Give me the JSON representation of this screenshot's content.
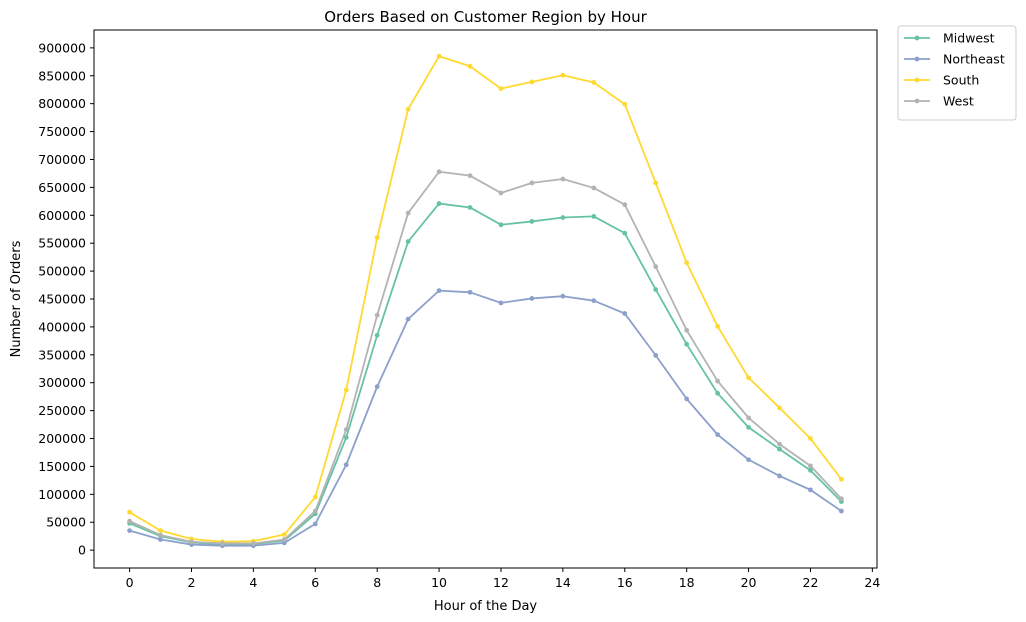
{
  "chart_data": {
    "type": "line",
    "title": "Orders Based on Customer Region by Hour",
    "xlabel": "Hour of the Day",
    "ylabel": "Number of Orders",
    "xlim": [
      -1.15,
      24.15
    ],
    "ylim": [
      -32000,
      932000
    ],
    "x_ticks": [
      0,
      2,
      4,
      6,
      8,
      10,
      12,
      14,
      16,
      18,
      20,
      22,
      24
    ],
    "y_ticks": [
      0,
      50000,
      100000,
      150000,
      200000,
      250000,
      300000,
      350000,
      400000,
      450000,
      500000,
      550000,
      600000,
      650000,
      700000,
      750000,
      800000,
      850000,
      900000
    ],
    "grid": false,
    "legend_position": "outside-top-right",
    "x": [
      0,
      1,
      2,
      3,
      4,
      5,
      6,
      7,
      8,
      9,
      10,
      11,
      12,
      13,
      14,
      15,
      16,
      17,
      18,
      19,
      20,
      21,
      22,
      23
    ],
    "series": [
      {
        "name": "Midwest",
        "color": "#66c2a5",
        "values": [
          48000,
          25000,
          14000,
          10000,
          11000,
          17000,
          65000,
          202000,
          385000,
          553000,
          621000,
          614000,
          583000,
          589000,
          596000,
          598000,
          568000,
          467000,
          369000,
          281000,
          220000,
          181000,
          143000,
          87000
        ]
      },
      {
        "name": "Northeast",
        "color": "#8da0cb",
        "values": [
          35000,
          19000,
          10000,
          8000,
          8000,
          13000,
          47000,
          153000,
          293000,
          414000,
          465000,
          462000,
          443000,
          451000,
          455000,
          447000,
          424000,
          349000,
          271000,
          207000,
          162000,
          133000,
          108000,
          70000
        ]
      },
      {
        "name": "South",
        "color": "#ffd92f",
        "values": [
          68000,
          35000,
          20000,
          15000,
          16000,
          28000,
          95000,
          287000,
          560000,
          790000,
          885000,
          867000,
          827000,
          839000,
          851000,
          838000,
          799000,
          658000,
          515000,
          401000,
          309000,
          255000,
          200000,
          127000
        ]
      },
      {
        "name": "West",
        "color": "#b3b3b3",
        "values": [
          52000,
          27000,
          15000,
          12000,
          12000,
          19000,
          70000,
          216000,
          421000,
          604000,
          678000,
          671000,
          640000,
          658000,
          665000,
          649000,
          619000,
          508000,
          394000,
          303000,
          237000,
          190000,
          151000,
          92000
        ]
      }
    ]
  }
}
